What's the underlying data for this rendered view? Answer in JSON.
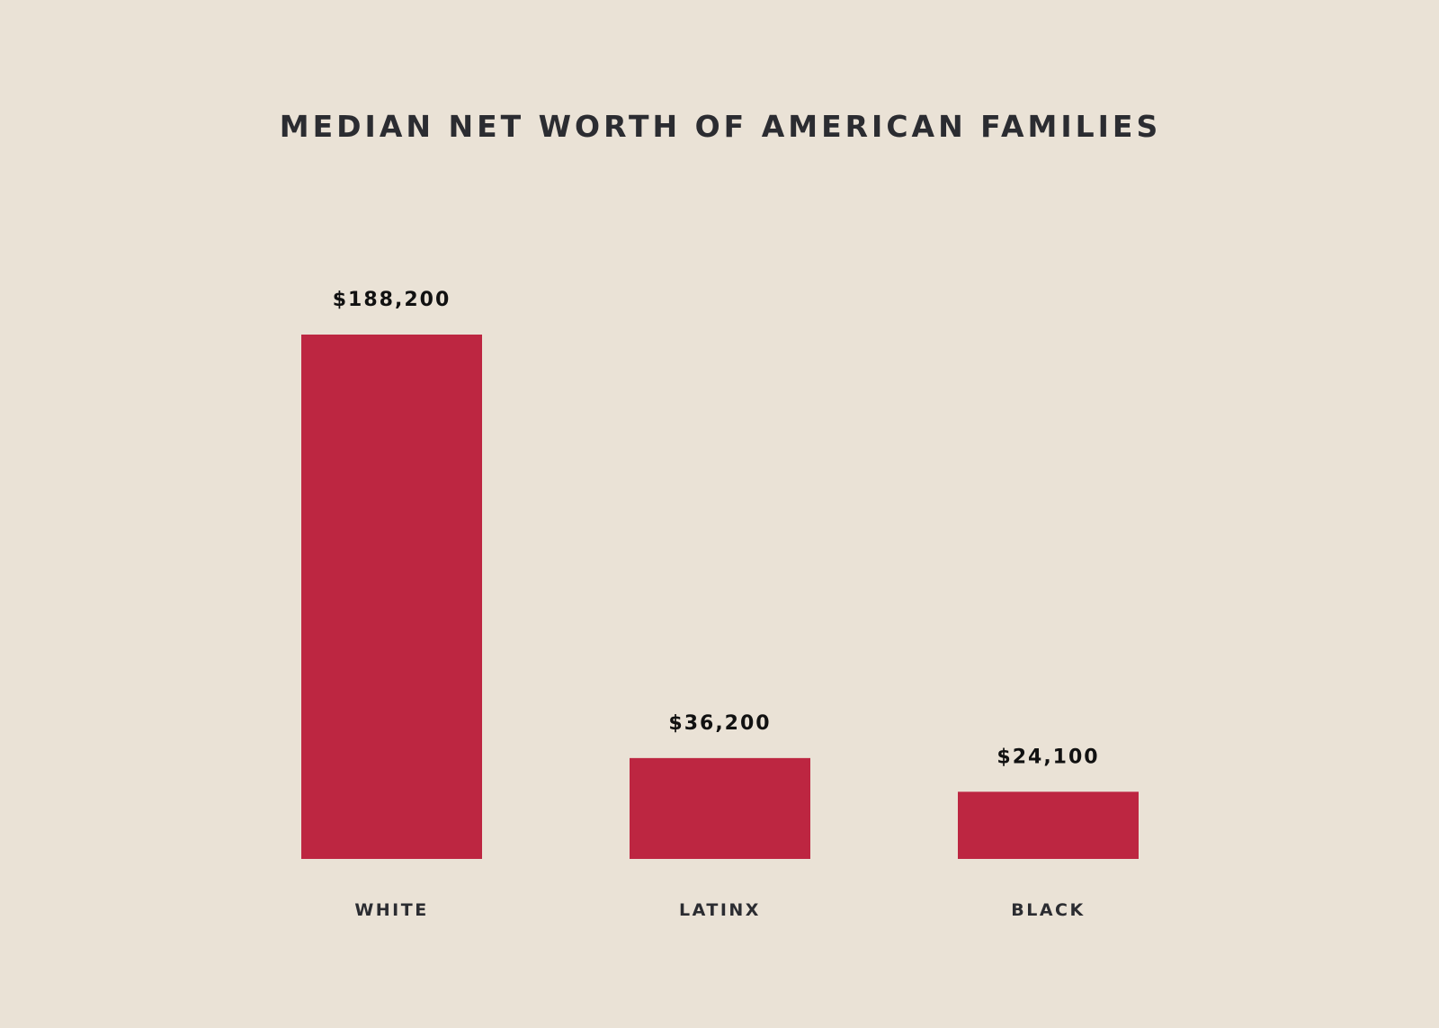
{
  "chart_data": {
    "type": "bar",
    "title": "MEDIAN NET WORTH OF AMERICAN FAMILIES",
    "categories": [
      "WHITE",
      "LATINX",
      "BLACK"
    ],
    "values": [
      188200,
      36200,
      24100
    ],
    "value_labels": [
      "$188,200",
      "$36,200",
      "$24,100"
    ],
    "xlabel": "",
    "ylabel": "",
    "ylim": [
      0,
      188200
    ],
    "grid": false,
    "bar_color": "#bd2641",
    "background": "#eae2d6"
  }
}
